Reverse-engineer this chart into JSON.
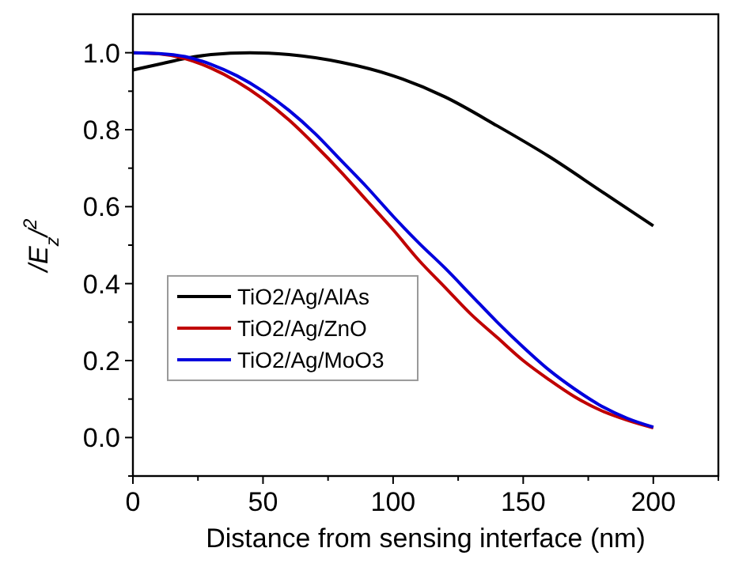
{
  "chart_data": {
    "type": "line",
    "xlabel": "Distance from sensing interface (nm)",
    "ylabel": "/E$_{z}$/$^{2}$",
    "xlim": [
      0,
      225
    ],
    "ylim": [
      -0.1,
      1.1
    ],
    "xticks": [
      0,
      {
        "value": 25,
        "label": null
      },
      50,
      {
        "value": 75,
        "label": null
      },
      100,
      {
        "value": 125,
        "label": null
      },
      150,
      {
        "value": 175,
        "label": null
      },
      200,
      {
        "value": 225,
        "label": null
      }
    ],
    "yticks": [
      {
        "value": -0.1,
        "label": null
      },
      "0.0",
      {
        "value": 0.1,
        "label": null
      },
      0.2,
      {
        "value": 0.3,
        "label": null
      },
      0.4,
      {
        "value": 0.5,
        "label": null
      },
      0.6,
      {
        "value": 0.7,
        "label": null
      },
      0.8,
      {
        "value": 0.9,
        "label": null
      },
      "1.0"
    ],
    "legend": "bottom left",
    "grid": false,
    "line_style": "solid",
    "series": [
      {
        "name": "TiO2/Ag/AlAs",
        "color": "#000000",
        "x": [
          0,
          10,
          20,
          30,
          45,
          60,
          80,
          100,
          120,
          140,
          160,
          180,
          200
        ],
        "values": [
          0.955,
          0.97,
          0.985,
          0.995,
          1.0,
          0.995,
          0.975,
          0.94,
          0.885,
          0.81,
          0.73,
          0.64,
          0.55
        ]
      },
      {
        "name": "TiO2/Ag/ZnO",
        "color": "#c00000",
        "x": [
          0,
          10,
          20,
          30,
          40,
          50,
          60,
          70,
          80,
          90,
          100,
          110,
          120,
          130,
          140,
          150,
          160,
          170,
          180,
          190,
          200
        ],
        "values": [
          1.0,
          0.997,
          0.985,
          0.96,
          0.925,
          0.88,
          0.825,
          0.76,
          0.69,
          0.615,
          0.54,
          0.46,
          0.39,
          0.32,
          0.26,
          0.2,
          0.15,
          0.105,
          0.07,
          0.045,
          0.025
        ]
      },
      {
        "name": "TiO2/Ag/MoO3",
        "color": "#0000dd",
        "x": [
          0,
          10,
          20,
          30,
          40,
          50,
          60,
          70,
          80,
          90,
          100,
          110,
          120,
          130,
          140,
          150,
          160,
          170,
          180,
          190,
          200
        ],
        "values": [
          1.0,
          0.998,
          0.99,
          0.97,
          0.94,
          0.9,
          0.85,
          0.79,
          0.72,
          0.65,
          0.575,
          0.505,
          0.44,
          0.37,
          0.3,
          0.235,
          0.175,
          0.125,
          0.082,
          0.05,
          0.027
        ]
      }
    ]
  }
}
